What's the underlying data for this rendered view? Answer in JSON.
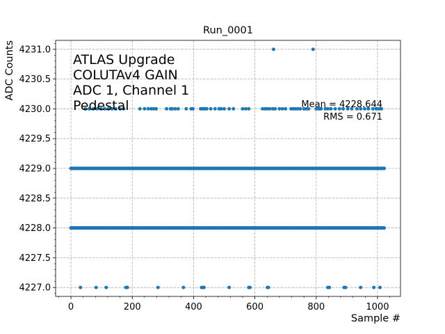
{
  "chart_data": {
    "type": "scatter",
    "title": "Run_0001",
    "xlabel": "Sample #",
    "ylabel": "ADC Counts",
    "xlim": [
      -50,
      1075
    ],
    "ylim": [
      4226.85,
      4231.15
    ],
    "x_ticks": [
      0,
      200,
      400,
      600,
      800,
      1000
    ],
    "x_tick_labels": [
      "0",
      "200",
      "400",
      "600",
      "800",
      "1000"
    ],
    "y_ticks": [
      4227.0,
      4227.5,
      4228.0,
      4228.5,
      4229.0,
      4229.5,
      4230.0,
      4230.5,
      4231.0
    ],
    "y_tick_labels": [
      "4227.0",
      "4227.5",
      "4228.0",
      "4228.5",
      "4229.0",
      "4229.5",
      "4230.0",
      "4230.5",
      "4231.0"
    ],
    "grid": true,
    "marker_color": "#1f77b4",
    "annotation_lines": [
      "ATLAS Upgrade",
      "COLUTAv4 GAIN",
      "ADC 1, Channel 1",
      "Pedestal"
    ],
    "mean_text": "Mean = 4228.644",
    "rms_text": "RMS = 0.671",
    "series": [
      {
        "y": 4231.0,
        "x": [
          661,
          790
        ]
      },
      {
        "y": 4230.0,
        "x": [
          47,
          60,
          73,
          86,
          98,
          110,
          122,
          134,
          146,
          160,
          172,
          225,
          240,
          252,
          262,
          270,
          278,
          312,
          325,
          330,
          340,
          350,
          376,
          392,
          398,
          423,
          428,
          433,
          438,
          443,
          456,
          470,
          483,
          490,
          500,
          516,
          530,
          560,
          570,
          580,
          625,
          633,
          640,
          648,
          658,
          666,
          680,
          690,
          700,
          718,
          725,
          732,
          740,
          748,
          760,
          768,
          775,
          800,
          808,
          812,
          816,
          830,
          838,
          848,
          862,
          876,
          888,
          903,
          916,
          933,
          945,
          958,
          970,
          985,
          996,
          1005,
          1013
        ]
      },
      {
        "y": 4229.0,
        "x": [
          0,
          2,
          4,
          6,
          8,
          10,
          12,
          14,
          16,
          18,
          20,
          22,
          24,
          26,
          28,
          30,
          32,
          34,
          36,
          38,
          40,
          42,
          44,
          46,
          48,
          50,
          52,
          54,
          56,
          58,
          60,
          62,
          64,
          66,
          68,
          70,
          72,
          74,
          76,
          78,
          80,
          82,
          84,
          86,
          88,
          90,
          92,
          94,
          96,
          98,
          100,
          102,
          104,
          106,
          108,
          110,
          112,
          114,
          116,
          118,
          120,
          122,
          124,
          126,
          128,
          130,
          132,
          134,
          136,
          138,
          140,
          142,
          144,
          146,
          148,
          150,
          152,
          154,
          156,
          158,
          160,
          162,
          164,
          166,
          168,
          170,
          172,
          174,
          176,
          178,
          180,
          182,
          184,
          186,
          188,
          190,
          192,
          194,
          196,
          198,
          200,
          202,
          204,
          206,
          208,
          210,
          212,
          214,
          216,
          218,
          220,
          222,
          224,
          226,
          228,
          230,
          232,
          234,
          236,
          238,
          240,
          242,
          244,
          246,
          248,
          250,
          252,
          254,
          256,
          258,
          260,
          262,
          264,
          266,
          268,
          270,
          272,
          274,
          276,
          278,
          280,
          282,
          284,
          286,
          288,
          290,
          292,
          294,
          296,
          298,
          300,
          302,
          304,
          306,
          308,
          310,
          312,
          314,
          316,
          318,
          320,
          322,
          324,
          326,
          328,
          330,
          332,
          334,
          336,
          338,
          340,
          342,
          344,
          346,
          348,
          350,
          352,
          354,
          356,
          358,
          360,
          362,
          364,
          366,
          368,
          370,
          372,
          374,
          376,
          378,
          380,
          382,
          384,
          386,
          388,
          390,
          392,
          394,
          396,
          398,
          400,
          402,
          404,
          406,
          408,
          410,
          412,
          414,
          416,
          418,
          420,
          422,
          424,
          426,
          428,
          430,
          432,
          434,
          436,
          438,
          440,
          442,
          444,
          446,
          448,
          450,
          452,
          454,
          456,
          458,
          460,
          462,
          464,
          466,
          468,
          470,
          472,
          474,
          476,
          478,
          480,
          482,
          484,
          486,
          488,
          490,
          492,
          494,
          496,
          498,
          500,
          502,
          504,
          506,
          508,
          510,
          512,
          514,
          516,
          518,
          520,
          522,
          524,
          526,
          528,
          530,
          532,
          534,
          536,
          538,
          540,
          542,
          544,
          546,
          548,
          550,
          552,
          554,
          556,
          558,
          560,
          562,
          564,
          566,
          568,
          570,
          572,
          574,
          576,
          578,
          580,
          582,
          584,
          586,
          588,
          590,
          592,
          594,
          596,
          598,
          600,
          602,
          604,
          606,
          608,
          610,
          612,
          614,
          616,
          618,
          620,
          622,
          624,
          626,
          628,
          630,
          632,
          634,
          636,
          638,
          640,
          642,
          644,
          646,
          648,
          650,
          652,
          654,
          656,
          658,
          660,
          662,
          664,
          666,
          668,
          670,
          672,
          674,
          676,
          678,
          680,
          682,
          684,
          686,
          688,
          690,
          692,
          694,
          696,
          698,
          700,
          702,
          704,
          706,
          708,
          710,
          712,
          714,
          716,
          718,
          720,
          722,
          724,
          726,
          728,
          730,
          732,
          734,
          736,
          738,
          740,
          742,
          744,
          746,
          748,
          750,
          752,
          754,
          756,
          758,
          760,
          762,
          764,
          766,
          768,
          770,
          772,
          774,
          776,
          778,
          780,
          782,
          784,
          786,
          788,
          790,
          792,
          794,
          796,
          798,
          800,
          802,
          804,
          806,
          808,
          810,
          812,
          814,
          816,
          818,
          820,
          822,
          824,
          826,
          828,
          830,
          832,
          834,
          836,
          838,
          840,
          842,
          844,
          846,
          848,
          850,
          852,
          854,
          856,
          858,
          860,
          862,
          864,
          866,
          868,
          870,
          872,
          874,
          876,
          878,
          880,
          882,
          884,
          886,
          888,
          890,
          892,
          894,
          896,
          898,
          900,
          902,
          904,
          906,
          908,
          910,
          912,
          914,
          916,
          918,
          920,
          922,
          924,
          926,
          928,
          930,
          932,
          934,
          936,
          938,
          940,
          942,
          944,
          946,
          948,
          950,
          952,
          954,
          956,
          958,
          960,
          962,
          964,
          966,
          968,
          970,
          972,
          974,
          976,
          978,
          980,
          982,
          984,
          986,
          988,
          990,
          992,
          994,
          996,
          998,
          1000,
          1002,
          1004,
          1006,
          1008,
          1010,
          1012,
          1014,
          1016,
          1018,
          1020,
          1022
        ]
      },
      {
        "y": 4228.0,
        "x": [
          0,
          2,
          4,
          6,
          8,
          10,
          12,
          14,
          16,
          18,
          20,
          22,
          24,
          26,
          28,
          30,
          32,
          34,
          36,
          38,
          40,
          42,
          44,
          46,
          48,
          50,
          52,
          54,
          56,
          58,
          60,
          62,
          64,
          66,
          68,
          70,
          72,
          74,
          76,
          78,
          80,
          82,
          84,
          86,
          88,
          90,
          92,
          94,
          96,
          98,
          100,
          102,
          104,
          106,
          108,
          110,
          112,
          114,
          116,
          118,
          120,
          122,
          124,
          126,
          128,
          130,
          132,
          134,
          136,
          138,
          140,
          142,
          144,
          146,
          148,
          150,
          152,
          154,
          156,
          158,
          160,
          162,
          164,
          166,
          168,
          170,
          172,
          174,
          176,
          178,
          180,
          182,
          184,
          186,
          188,
          190,
          192,
          194,
          196,
          198,
          200,
          202,
          204,
          206,
          208,
          210,
          212,
          214,
          216,
          218,
          220,
          222,
          224,
          226,
          228,
          230,
          232,
          234,
          236,
          238,
          240,
          242,
          244,
          246,
          248,
          250,
          252,
          254,
          256,
          258,
          260,
          262,
          264,
          266,
          268,
          270,
          272,
          274,
          276,
          278,
          280,
          282,
          284,
          286,
          288,
          290,
          292,
          294,
          296,
          298,
          300,
          302,
          304,
          306,
          308,
          310,
          312,
          314,
          316,
          318,
          320,
          322,
          324,
          326,
          328,
          330,
          332,
          334,
          336,
          338,
          340,
          342,
          344,
          346,
          348,
          350,
          352,
          354,
          356,
          358,
          360,
          362,
          364,
          366,
          368,
          370,
          372,
          374,
          376,
          378,
          380,
          382,
          384,
          386,
          388,
          390,
          392,
          394,
          396,
          398,
          400,
          402,
          404,
          406,
          408,
          410,
          412,
          414,
          416,
          418,
          420,
          422,
          424,
          426,
          428,
          430,
          432,
          434,
          436,
          438,
          440,
          442,
          444,
          446,
          448,
          450,
          452,
          454,
          456,
          458,
          460,
          462,
          464,
          466,
          468,
          470,
          472,
          474,
          476,
          478,
          480,
          482,
          484,
          486,
          488,
          490,
          492,
          494,
          496,
          498,
          500,
          502,
          504,
          506,
          508,
          510,
          512,
          514,
          516,
          518,
          520,
          522,
          524,
          526,
          528,
          530,
          532,
          534,
          536,
          538,
          540,
          542,
          544,
          546,
          548,
          550,
          552,
          554,
          556,
          558,
          560,
          562,
          564,
          566,
          568,
          570,
          572,
          574,
          576,
          578,
          580,
          582,
          584,
          586,
          588,
          590,
          592,
          594,
          596,
          598,
          600,
          602,
          604,
          606,
          608,
          610,
          612,
          614,
          616,
          618,
          620,
          622,
          624,
          626,
          628,
          630,
          632,
          634,
          636,
          638,
          640,
          642,
          644,
          646,
          648,
          650,
          652,
          654,
          656,
          658,
          660,
          662,
          664,
          666,
          668,
          670,
          672,
          674,
          676,
          678,
          680,
          682,
          684,
          686,
          688,
          690,
          692,
          694,
          696,
          698,
          700,
          702,
          704,
          706,
          708,
          710,
          712,
          714,
          716,
          718,
          720,
          722,
          724,
          726,
          728,
          730,
          732,
          734,
          736,
          738,
          740,
          742,
          744,
          746,
          748,
          750,
          752,
          754,
          756,
          758,
          760,
          762,
          764,
          766,
          768,
          770,
          772,
          774,
          776,
          778,
          780,
          782,
          784,
          786,
          788,
          790,
          792,
          794,
          796,
          798,
          800,
          802,
          804,
          806,
          808,
          810,
          812,
          814,
          816,
          818,
          820,
          822,
          824,
          826,
          828,
          830,
          832,
          834,
          836,
          838,
          840,
          842,
          844,
          846,
          848,
          850,
          852,
          854,
          856,
          858,
          860,
          862,
          864,
          866,
          868,
          870,
          872,
          874,
          876,
          878,
          880,
          882,
          884,
          886,
          888,
          890,
          892,
          894,
          896,
          898,
          900,
          902,
          904,
          906,
          908,
          910,
          912,
          914,
          916,
          918,
          920,
          922,
          924,
          926,
          928,
          930,
          932,
          934,
          936,
          938,
          940,
          942,
          944,
          946,
          948,
          950,
          952,
          954,
          956,
          958,
          960,
          962,
          964,
          966,
          968,
          970,
          972,
          974,
          976,
          978,
          980,
          982,
          984,
          986,
          988,
          990,
          992,
          994,
          996,
          998,
          1000,
          1002,
          1004,
          1006,
          1008,
          1010,
          1012,
          1014,
          1016,
          1018,
          1020,
          1022
        ]
      },
      {
        "y": 4227.0,
        "x": [
          31,
          82,
          115,
          179,
          184,
          284,
          367,
          426,
          431,
          434,
          516,
          580,
          584,
          641,
          644,
          838,
          843,
          891,
          896,
          945,
          988,
          1008
        ]
      }
    ]
  }
}
